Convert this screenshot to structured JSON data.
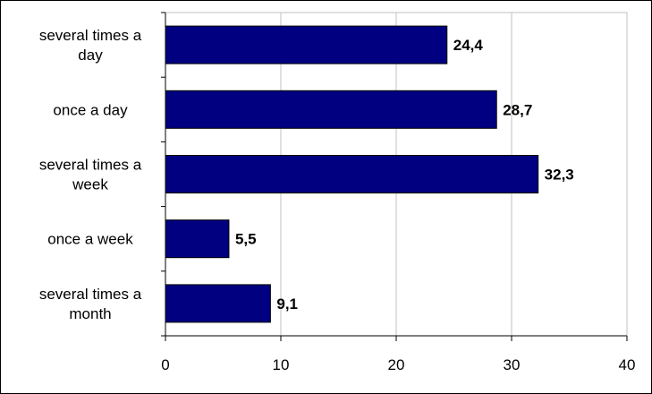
{
  "chart_data": {
    "type": "bar",
    "orientation": "horizontal",
    "categories": [
      [
        "several times a",
        "day"
      ],
      [
        "once a day"
      ],
      [
        "several times a",
        "week"
      ],
      [
        "once a week"
      ],
      [
        "several times a",
        "month"
      ]
    ],
    "values": [
      24.4,
      28.7,
      32.3,
      5.5,
      9.1
    ],
    "data_labels": [
      "24,4",
      "28,7",
      "32,3",
      "5,5",
      "9,1"
    ],
    "xlim": [
      0,
      40
    ],
    "xticks": [
      0,
      10,
      20,
      30,
      40
    ],
    "grid": true,
    "legend": "none",
    "title": "",
    "xlabel": "",
    "ylabel": "",
    "colors": {
      "bar": "#000080",
      "bar_border": "#000000",
      "grid": "#c0c0c0",
      "axis": "#000000"
    }
  }
}
